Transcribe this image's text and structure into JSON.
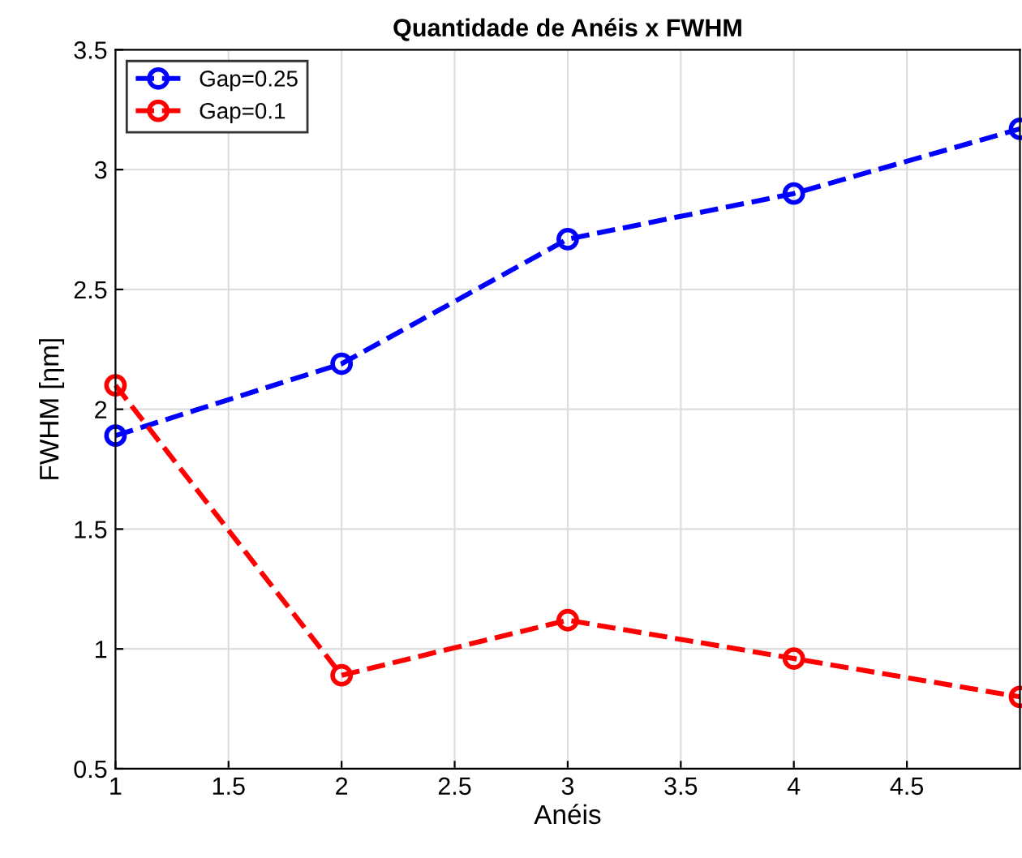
{
  "chart_data": {
    "type": "line",
    "title": "Quantidade de Anéis x FWHM",
    "xlabel": "Anéis",
    "ylabel": "FWHM [ηm]",
    "x": [
      1,
      2,
      3,
      4,
      5
    ],
    "series": [
      {
        "name": "Gap=0.25",
        "color": "#0000ff",
        "values": [
          1.89,
          2.19,
          2.71,
          2.9,
          3.17
        ]
      },
      {
        "name": "Gap=0.1",
        "color": "#ff0000",
        "values": [
          2.1,
          0.89,
          1.12,
          0.96,
          0.8
        ]
      }
    ],
    "xlim": [
      1,
      5
    ],
    "xticks": [
      1,
      1.5,
      2,
      2.5,
      3,
      3.5,
      4,
      4.5
    ],
    "ylim": [
      0.5,
      3.5
    ],
    "yticks": [
      0.5,
      1,
      1.5,
      2,
      2.5,
      3,
      3.5
    ],
    "grid": true,
    "legend": "top left",
    "marker": "circle",
    "line_style": "dashed"
  }
}
